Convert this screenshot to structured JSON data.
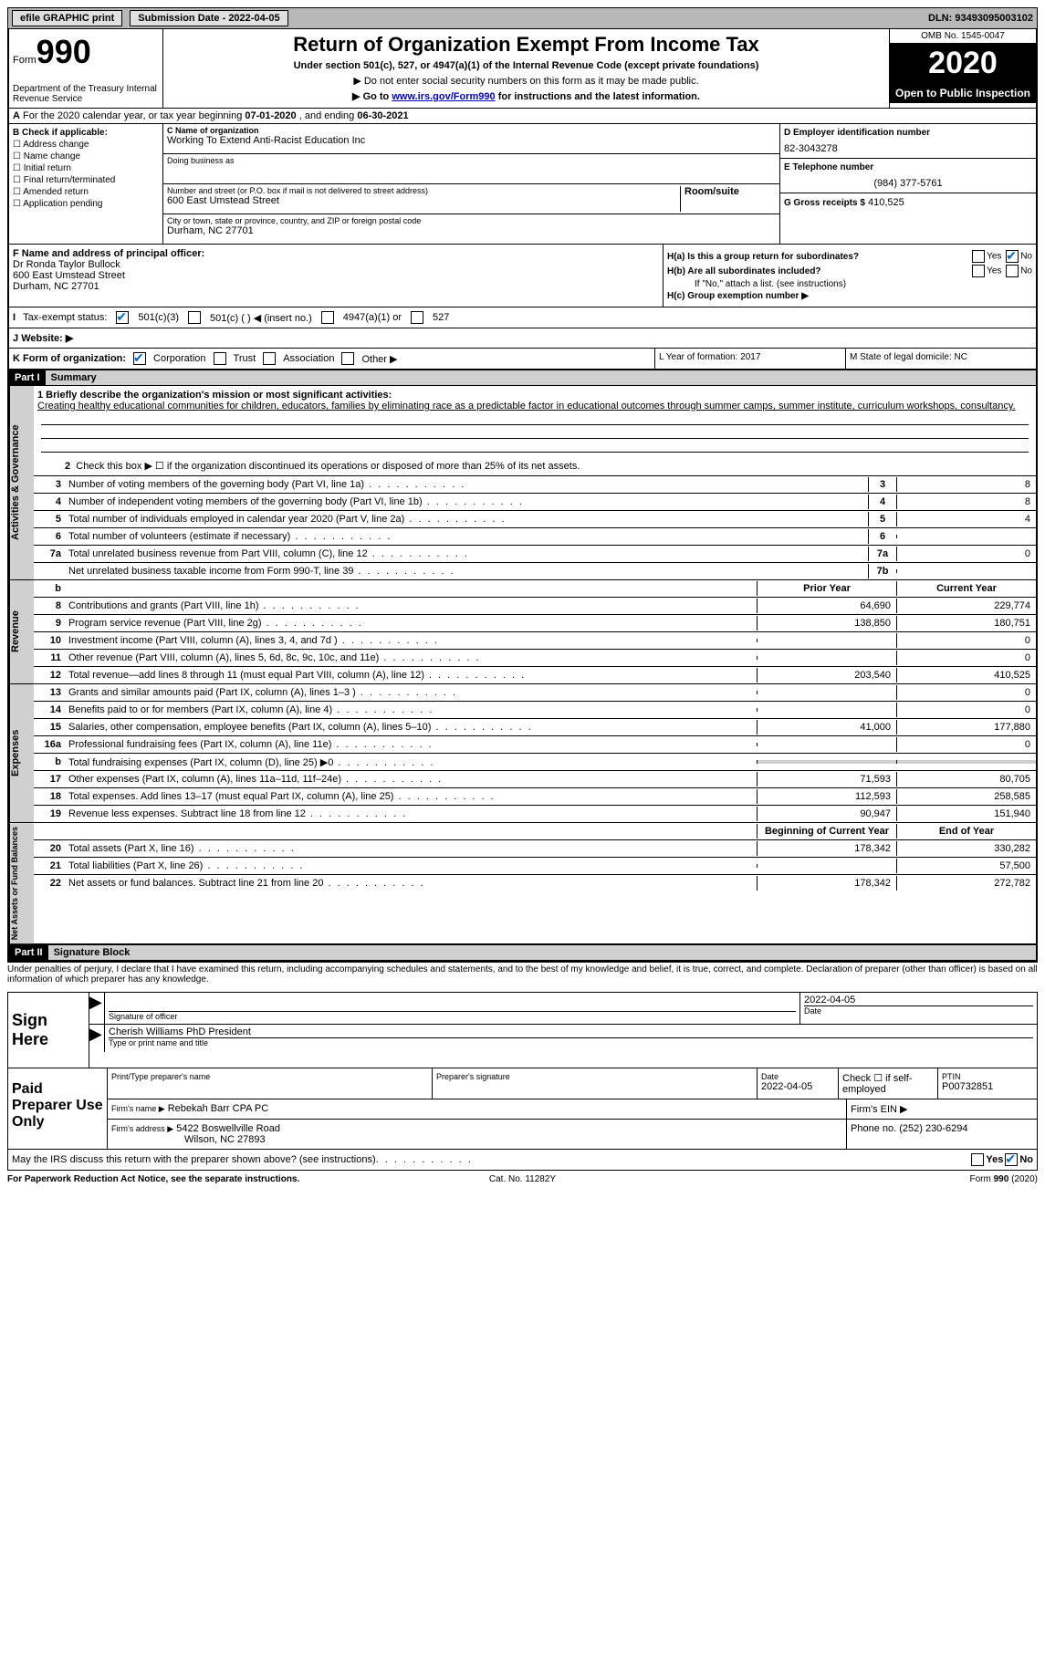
{
  "top": {
    "efile": "efile GRAPHIC print",
    "submission": "Submission Date - 2022-04-05",
    "dln": "DLN: 93493095003102"
  },
  "header": {
    "form_word": "Form",
    "form_num": "990",
    "dept": "Department of the Treasury\nInternal Revenue Service",
    "title": "Return of Organization Exempt From Income Tax",
    "subtitle": "Under section 501(c), 527, or 4947(a)(1) of the Internal Revenue Code (except private foundations)",
    "note1": "▶ Do not enter social security numbers on this form as it may be made public.",
    "note2_pre": "▶ Go to ",
    "note2_link": "www.irs.gov/Form990",
    "note2_post": " for instructions and the latest information.",
    "omb": "OMB No. 1545-0047",
    "year": "2020",
    "open": "Open to Public Inspection"
  },
  "row_a": {
    "pre": "A",
    "text_pre": "For the 2020 calendar year, or tax year beginning ",
    "begin": "07-01-2020",
    "mid": "  , and ending ",
    "end": "06-30-2021"
  },
  "b": {
    "hdr": "B Check if applicable:",
    "opts": [
      "Address change",
      "Name change",
      "Initial return",
      "Final return/terminated",
      "Amended return",
      "Application pending"
    ]
  },
  "c": {
    "name_lbl": "C Name of organization",
    "name": "Working To Extend Anti-Racist Education Inc",
    "dba_lbl": "Doing business as",
    "addr_lbl": "Number and street (or P.O. box if mail is not delivered to street address)",
    "room_lbl": "Room/suite",
    "addr": "600 East Umstead Street",
    "city_lbl": "City or town, state or province, country, and ZIP or foreign postal code",
    "city": "Durham, NC  27701"
  },
  "d": {
    "ein_lbl": "D Employer identification number",
    "ein": "82-3043278",
    "tel_lbl": "E Telephone number",
    "tel": "(984) 377-5761",
    "gross_lbl": "G Gross receipts $",
    "gross": "410,525"
  },
  "f": {
    "lbl": "F  Name and address of principal officer:",
    "name": "Dr Ronda Taylor Bullock",
    "addr1": "600 East Umstead Street",
    "addr2": "Durham, NC  27701"
  },
  "h": {
    "a_lbl": "H(a)  Is this a group return for subordinates?",
    "b_lbl": "H(b)  Are all subordinates included?",
    "b_note": "If \"No,\" attach a list. (see instructions)",
    "c_lbl": "H(c)  Group exemption number ▶",
    "yes": "Yes",
    "no": "No"
  },
  "i": {
    "lbl": "Tax-exempt status:",
    "o1": "501(c)(3)",
    "o2": "501(c) (  ) ◀ (insert no.)",
    "o3": "4947(a)(1) or",
    "o4": "527"
  },
  "j": {
    "lbl": "Website: ▶"
  },
  "k": {
    "lbl": "K Form of organization:",
    "o1": "Corporation",
    "o2": "Trust",
    "o3": "Association",
    "o4": "Other ▶",
    "l": "L Year of formation: 2017",
    "m": "M State of legal domicile: NC"
  },
  "part1": {
    "hdr": "Part I",
    "title": "Summary"
  },
  "summary": {
    "q1": "1  Briefly describe the organization's mission or most significant activities:",
    "mission": "Creating healthy educational communities for children, educators, families by eliminating race as a predictable factor in educational outcomes through summer camps, summer institute, curriculum workshops, consultancy.",
    "q2": "Check this box ▶ ☐  if the organization discontinued its operations or disposed of more than 25% of its net assets."
  },
  "gov_lines": [
    {
      "num": "3",
      "text": "Number of voting members of the governing body (Part VI, line 1a)",
      "box": "3",
      "val": "8"
    },
    {
      "num": "4",
      "text": "Number of independent voting members of the governing body (Part VI, line 1b)",
      "box": "4",
      "val": "8"
    },
    {
      "num": "5",
      "text": "Total number of individuals employed in calendar year 2020 (Part V, line 2a)",
      "box": "5",
      "val": "4"
    },
    {
      "num": "6",
      "text": "Total number of volunteers (estimate if necessary)",
      "box": "6",
      "val": ""
    },
    {
      "num": "7a",
      "text": "Total unrelated business revenue from Part VIII, column (C), line 12",
      "box": "7a",
      "val": "0"
    },
    {
      "num": "",
      "text": "Net unrelated business taxable income from Form 990-T, line 39",
      "box": "7b",
      "val": ""
    }
  ],
  "col_hdrs": {
    "b": "b",
    "prior": "Prior Year",
    "curr": "Current Year"
  },
  "rev_lines": [
    {
      "num": "8",
      "text": "Contributions and grants (Part VIII, line 1h)",
      "prior": "64,690",
      "curr": "229,774"
    },
    {
      "num": "9",
      "text": "Program service revenue (Part VIII, line 2g)",
      "prior": "138,850",
      "curr": "180,751"
    },
    {
      "num": "10",
      "text": "Investment income (Part VIII, column (A), lines 3, 4, and 7d )",
      "prior": "",
      "curr": "0"
    },
    {
      "num": "11",
      "text": "Other revenue (Part VIII, column (A), lines 5, 6d, 8c, 9c, 10c, and 11e)",
      "prior": "",
      "curr": "0"
    },
    {
      "num": "12",
      "text": "Total revenue—add lines 8 through 11 (must equal Part VIII, column (A), line 12)",
      "prior": "203,540",
      "curr": "410,525"
    }
  ],
  "exp_lines": [
    {
      "num": "13",
      "text": "Grants and similar amounts paid (Part IX, column (A), lines 1–3 )",
      "prior": "",
      "curr": "0"
    },
    {
      "num": "14",
      "text": "Benefits paid to or for members (Part IX, column (A), line 4)",
      "prior": "",
      "curr": "0"
    },
    {
      "num": "15",
      "text": "Salaries, other compensation, employee benefits (Part IX, column (A), lines 5–10)",
      "prior": "41,000",
      "curr": "177,880"
    },
    {
      "num": "16a",
      "text": "Professional fundraising fees (Part IX, column (A), line 11e)",
      "prior": "",
      "curr": "0"
    },
    {
      "num": "b",
      "text": "Total fundraising expenses (Part IX, column (D), line 25) ▶0",
      "prior": "shade",
      "curr": "shade"
    },
    {
      "num": "17",
      "text": "Other expenses (Part IX, column (A), lines 11a–11d, 11f–24e)",
      "prior": "71,593",
      "curr": "80,705"
    },
    {
      "num": "18",
      "text": "Total expenses. Add lines 13–17 (must equal Part IX, column (A), line 25)",
      "prior": "112,593",
      "curr": "258,585"
    },
    {
      "num": "19",
      "text": "Revenue less expenses. Subtract line 18 from line 12",
      "prior": "90,947",
      "curr": "151,940"
    }
  ],
  "na_hdrs": {
    "prior": "Beginning of Current Year",
    "curr": "End of Year"
  },
  "na_lines": [
    {
      "num": "20",
      "text": "Total assets (Part X, line 16)",
      "prior": "178,342",
      "curr": "330,282"
    },
    {
      "num": "21",
      "text": "Total liabilities (Part X, line 26)",
      "prior": "",
      "curr": "57,500"
    },
    {
      "num": "22",
      "text": "Net assets or fund balances. Subtract line 21 from line 20",
      "prior": "178,342",
      "curr": "272,782"
    }
  ],
  "side_labels": {
    "gov": "Activities & Governance",
    "rev": "Revenue",
    "exp": "Expenses",
    "na": "Net Assets or Fund Balances"
  },
  "part2": {
    "hdr": "Part II",
    "title": "Signature Block"
  },
  "penalty": "Under penalties of perjury, I declare that I have examined this return, including accompanying schedules and statements, and to the best of my knowledge and belief, it is true, correct, and complete. Declaration of preparer (other than officer) is based on all information of which preparer has any knowledge.",
  "sign": {
    "label": "Sign Here",
    "sig_lbl": "Signature of officer",
    "date": "2022-04-05",
    "date_lbl": "Date",
    "name": "Cherish Williams PhD  President",
    "name_lbl": "Type or print name and title"
  },
  "prep": {
    "label": "Paid Preparer Use Only",
    "r1": {
      "c1": "Print/Type preparer's name",
      "c2": "Preparer's signature",
      "c3": "Date",
      "c3v": "2022-04-05",
      "c4": "Check ☐ if self-employed",
      "c5": "PTIN",
      "c5v": "P00732851"
    },
    "r2": {
      "lbl": "Firm's name    ▶",
      "val": "Rebekah Barr CPA PC",
      "ein": "Firm's EIN ▶"
    },
    "r3": {
      "lbl": "Firm's address ▶",
      "val": "5422 Boswellville Road",
      "city": "Wilson, NC  27893",
      "phone": "Phone no. (252) 230-6294"
    }
  },
  "discuss": {
    "text": "May the IRS discuss this return with the preparer shown above? (see instructions)",
    "yes": "Yes",
    "no": "No"
  },
  "footer": {
    "f1": "For Paperwork Reduction Act Notice, see the separate instructions.",
    "f2": "Cat. No. 11282Y",
    "f3": "Form 990 (2020)"
  }
}
